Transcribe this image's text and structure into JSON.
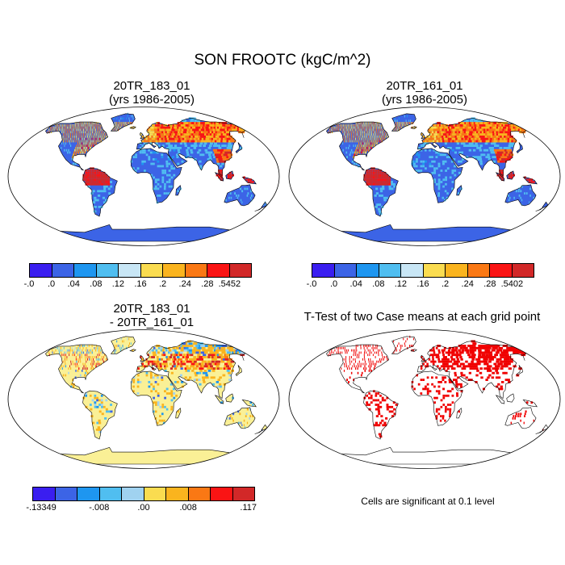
{
  "title": "SON FROOTC (kgC/m^2)",
  "panels": {
    "p1": {
      "line1": "20TR_183_01",
      "line2": "(yrs 1986-2005)"
    },
    "p2": {
      "line1": "20TR_161_01",
      "line2": "(yrs 1986-2005)"
    },
    "p3": {
      "line1": "20TR_183_01",
      "line2": "- 20TR_161_01"
    },
    "p4": {
      "line1": "T-Test of two Case means at each grid point"
    }
  },
  "colorbars": {
    "cb1": {
      "colors": [
        "#3a1ef0",
        "#3c64e6",
        "#1e96f0",
        "#50bef0",
        "#c8e6f5",
        "#fadc50",
        "#fab41e",
        "#fa7814",
        "#fa1414",
        "#d22828"
      ],
      "labels": [
        "-.0",
        ".0",
        ".04",
        ".08",
        ".12",
        ".16",
        ".2",
        ".24",
        ".28",
        ".5452"
      ]
    },
    "cb2": {
      "colors": [
        "#3a1ef0",
        "#3c64e6",
        "#1e96f0",
        "#50bef0",
        "#c8e6f5",
        "#fadc50",
        "#fab41e",
        "#fa7814",
        "#fa1414",
        "#d22828"
      ],
      "labels": [
        "-.0",
        ".0",
        ".04",
        ".08",
        ".12",
        ".16",
        ".2",
        ".24",
        ".28",
        ".5402"
      ]
    },
    "cb3": {
      "colors": [
        "#3a1ef0",
        "#3c64e6",
        "#1e96f0",
        "#50bef0",
        "#a0d2f0",
        "#fadc50",
        "#fab41e",
        "#fa7814",
        "#fa1414",
        "#d22828"
      ],
      "labels": [
        "-.13349",
        "-.008",
        ".00",
        ".008",
        ".117"
      ]
    }
  },
  "significance_note": "Cells are significant at 0.1 level",
  "colors": {
    "land_base": "#3c64e6",
    "diff_base": "#faf096",
    "signif": "#f00000"
  }
}
